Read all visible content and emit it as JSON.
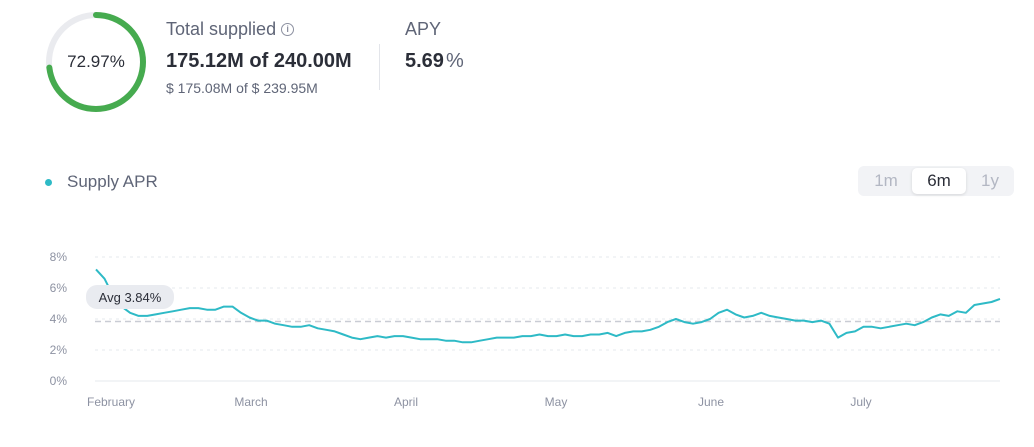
{
  "utilization": {
    "label": "72.97%",
    "fraction": 0.7297,
    "color": "#46ab4f",
    "track_color": "#eaebef"
  },
  "supplied": {
    "title": "Total supplied",
    "info_icon": "info-icon",
    "amount": "175.12M",
    "of_label": "of",
    "cap": "240.00M",
    "usd_amount": "$ 175.08M",
    "usd_cap": "$ 239.95M"
  },
  "apy": {
    "title": "APY",
    "value": "5.69",
    "unit": "%"
  },
  "legend": {
    "label": "Supply APR",
    "color": "#2ebac6"
  },
  "range": {
    "options": [
      "1m",
      "6m",
      "1y"
    ],
    "selected": "6m"
  },
  "avg": {
    "label": "Avg 3.84%",
    "value": 3.84
  },
  "chart_data": {
    "type": "line",
    "series": [
      {
        "name": "Supply APR",
        "x": [
          0,
          2,
          4,
          6,
          8,
          10,
          12,
          14,
          16,
          18,
          20,
          22,
          24,
          26,
          28,
          30,
          32,
          34,
          36,
          38,
          40,
          42,
          44,
          46,
          48,
          50,
          52,
          54,
          56,
          58,
          60,
          62,
          64,
          66,
          68,
          70,
          72,
          74,
          76,
          78,
          80,
          82,
          84,
          86,
          88,
          90,
          92,
          94,
          96,
          98,
          100,
          102,
          104,
          106,
          108,
          110,
          112,
          114,
          116,
          118,
          120,
          122,
          124,
          126,
          128,
          130,
          132,
          134,
          136,
          138,
          140,
          142,
          144,
          146,
          148,
          150,
          152,
          154,
          156,
          158,
          160,
          162,
          164,
          166,
          168,
          170,
          172,
          174,
          176,
          178,
          180
        ],
        "values": [
          7.2,
          6.6,
          5.5,
          4.8,
          4.4,
          4.2,
          4.2,
          4.3,
          4.4,
          4.5,
          4.6,
          4.7,
          4.7,
          4.6,
          4.6,
          4.8,
          4.8,
          4.4,
          4.1,
          3.9,
          3.9,
          3.7,
          3.6,
          3.5,
          3.5,
          3.6,
          3.4,
          3.3,
          3.2,
          3.0,
          2.8,
          2.7,
          2.8,
          2.9,
          2.8,
          2.9,
          2.9,
          2.8,
          2.7,
          2.7,
          2.7,
          2.6,
          2.6,
          2.5,
          2.5,
          2.6,
          2.7,
          2.8,
          2.8,
          2.8,
          2.9,
          2.9,
          3.0,
          2.9,
          2.9,
          3.0,
          2.9,
          2.9,
          3.0,
          3.0,
          3.1,
          2.9,
          3.1,
          3.2,
          3.2,
          3.3,
          3.5,
          3.8,
          4.0,
          3.8,
          3.7,
          3.8,
          4.0,
          4.4,
          4.6,
          4.3,
          4.1,
          4.2,
          4.4,
          4.2,
          4.1,
          4.0,
          3.9,
          3.9,
          3.8,
          3.9,
          3.7,
          2.8,
          3.1,
          3.2,
          3.5
        ]
      }
    ],
    "series_tail": [
      3.5,
      3.4,
      3.5,
      3.6,
      3.7,
      3.6,
      3.8,
      4.1,
      4.3,
      4.2,
      4.5,
      4.4,
      4.9,
      5.0,
      5.1,
      5.3
    ],
    "x_tick_labels": [
      "February",
      "March",
      "April",
      "May",
      "June",
      "July"
    ],
    "y_tick_labels": [
      "0%",
      "2%",
      "4%",
      "6%",
      "8%"
    ],
    "ylim": [
      0,
      8
    ],
    "grid": true
  }
}
